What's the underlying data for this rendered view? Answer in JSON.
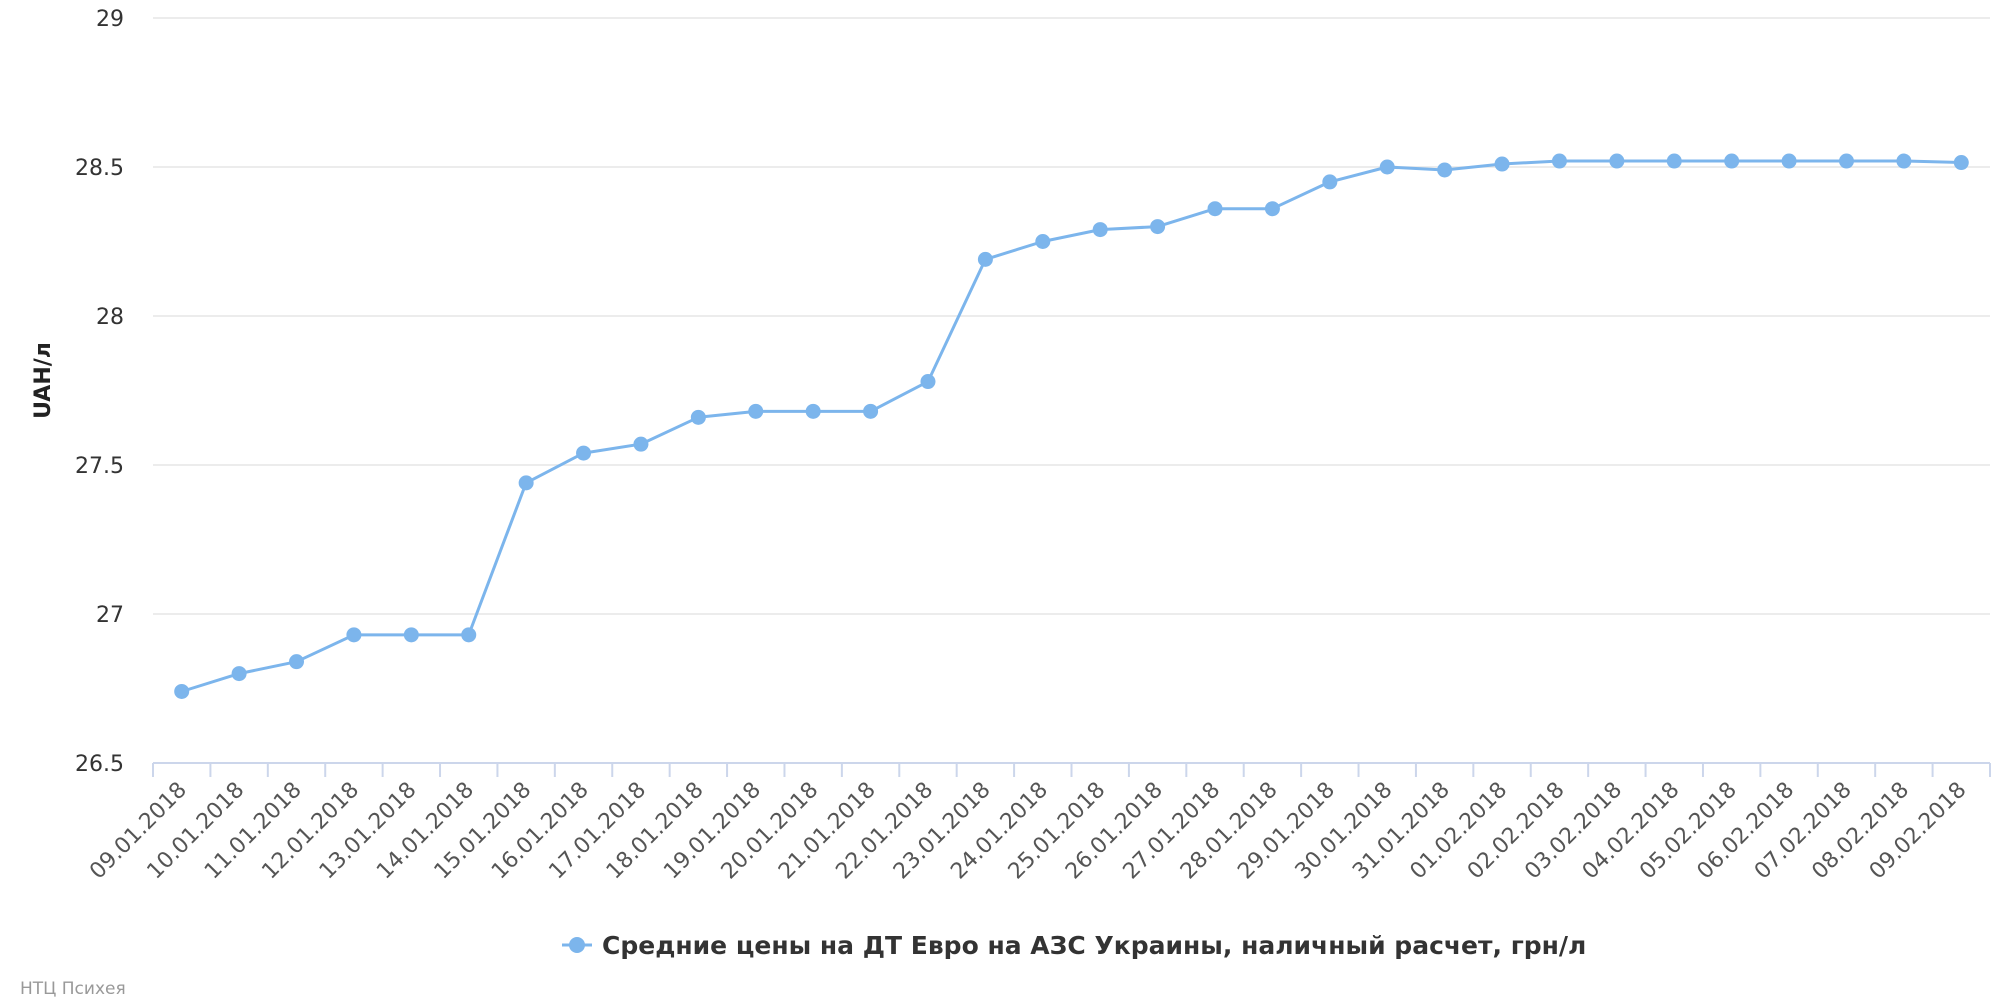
{
  "chart_data": {
    "type": "line",
    "ylabel": "UAH/л",
    "ylim": [
      26.5,
      29
    ],
    "yticks": [
      26.5,
      27,
      27.5,
      28,
      28.5,
      29
    ],
    "grid": true,
    "legend_position": "bottom-center",
    "series": [
      {
        "name": "Средние цены на ДТ Евро на АЗС Украины, наличный расчет, грн/л",
        "color": "#7cb5ec",
        "values": [
          26.74,
          26.8,
          26.84,
          26.93,
          26.93,
          26.93,
          27.44,
          27.54,
          27.57,
          27.66,
          27.68,
          27.68,
          27.68,
          27.78,
          28.19,
          28.25,
          28.29,
          28.3,
          28.36,
          28.36,
          28.45,
          28.5,
          28.49,
          28.51,
          28.52,
          28.52,
          28.52,
          28.52,
          28.52,
          28.52,
          28.52,
          28.515
        ]
      }
    ],
    "categories": [
      "09.01.2018",
      "10.01.2018",
      "11.01.2018",
      "12.01.2018",
      "13.01.2018",
      "14.01.2018",
      "15.01.2018",
      "16.01.2018",
      "17.01.2018",
      "18.01.2018",
      "19.01.2018",
      "20.01.2018",
      "21.01.2018",
      "22.01.2018",
      "23.01.2018",
      "24.01.2018",
      "25.01.2018",
      "26.01.2018",
      "27.01.2018",
      "28.01.2018",
      "29.01.2018",
      "30.01.2018",
      "31.01.2018",
      "01.02.2018",
      "02.02.2018",
      "03.02.2018",
      "04.02.2018",
      "05.02.2018",
      "06.02.2018",
      "07.02.2018",
      "08.02.2018",
      "09.02.2018"
    ]
  },
  "credit": "НТЦ Психея"
}
